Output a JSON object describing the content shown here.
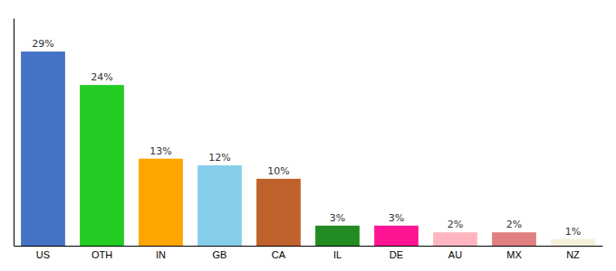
{
  "chart_data": {
    "type": "bar",
    "categories": [
      "US",
      "OTH",
      "IN",
      "GB",
      "CA",
      "IL",
      "DE",
      "AU",
      "MX",
      "NZ"
    ],
    "values": [
      29,
      24,
      13,
      12,
      10,
      3,
      3,
      2,
      2,
      1
    ],
    "value_labels": [
      "29%",
      "24%",
      "13%",
      "12%",
      "10%",
      "3%",
      "3%",
      "2%",
      "2%",
      "1%"
    ],
    "colors": [
      "#4472C4",
      "#22CC22",
      "#FFA500",
      "#87CEEB",
      "#C0622B",
      "#228B22",
      "#FF1493",
      "#FFB6C1",
      "#E08080",
      "#F5F0DC"
    ],
    "ylim": [
      0,
      34
    ],
    "data_labels": true,
    "tick_labels": "x"
  }
}
